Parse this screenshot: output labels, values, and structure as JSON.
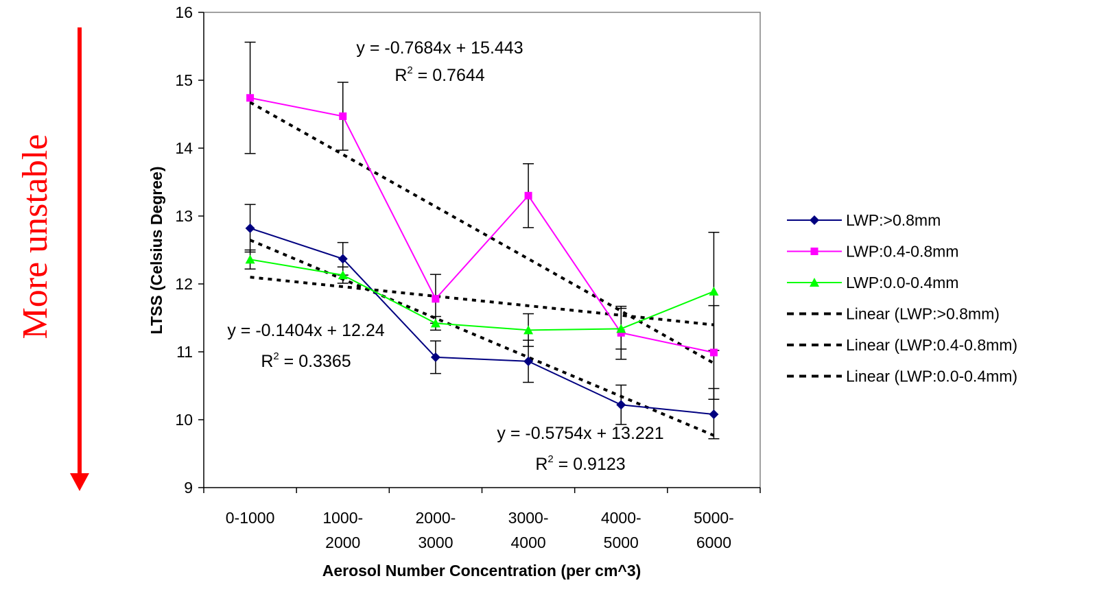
{
  "side_annotation": {
    "text": "More unstable",
    "color": "#ff0000"
  },
  "chart_data": {
    "type": "line",
    "title": "",
    "xlabel": "Aerosol Number Concentration (per cm^3)",
    "ylabel": "LTSS (Celsius Degree)",
    "categories": [
      "0-1000",
      "1000-2000",
      "2000-3000",
      "3000-4000",
      "4000-5000",
      "5000-6000"
    ],
    "category_lines": [
      [
        "0-1000"
      ],
      [
        "1000-",
        "2000"
      ],
      [
        "2000-",
        "3000"
      ],
      [
        "3000-",
        "4000"
      ],
      [
        "4000-",
        "5000"
      ],
      [
        "5000-",
        "6000"
      ]
    ],
    "ylim": [
      9,
      16
    ],
    "yticks": [
      "9",
      "10",
      "11",
      "12",
      "13",
      "14",
      "15",
      "16"
    ],
    "grid": false,
    "legend_position": "right",
    "series": [
      {
        "name": "LWP:>0.8mm",
        "color": "#000080",
        "marker": "diamond",
        "values": [
          12.82,
          12.37,
          10.92,
          10.86,
          10.22,
          10.08
        ],
        "err_high": [
          13.17,
          12.61,
          11.16,
          11.17,
          10.51,
          10.46
        ],
        "err_low": [
          12.47,
          12.13,
          10.68,
          10.55,
          9.93,
          9.72
        ]
      },
      {
        "name": "LWP:0.4-0.8mm",
        "color": "#ff00ff",
        "marker": "square",
        "values": [
          14.74,
          14.47,
          11.78,
          13.3,
          11.28,
          10.99
        ],
        "err_high": [
          15.56,
          14.97,
          12.14,
          13.77,
          11.67,
          11.68
        ],
        "err_low": [
          13.92,
          13.97,
          11.42,
          12.83,
          10.89,
          10.3
        ]
      },
      {
        "name": "LWP:0.0-0.4mm",
        "color": "#00ff00",
        "marker": "triangle",
        "values": [
          12.36,
          12.13,
          11.42,
          11.32,
          11.34,
          11.89
        ],
        "err_high": [
          12.5,
          12.25,
          11.52,
          11.56,
          11.64,
          12.76
        ],
        "err_low": [
          12.22,
          12.01,
          11.32,
          11.08,
          11.04,
          11.02
        ]
      }
    ],
    "trendlines": [
      {
        "name": "Linear (LWP:>0.8mm)",
        "slope": -0.5754,
        "intercept": 13.221,
        "color": "#000000",
        "style": "dotted"
      },
      {
        "name": "Linear (LWP:0.4-0.8mm)",
        "slope": -0.7684,
        "intercept": 15.443,
        "color": "#000000",
        "style": "dotted"
      },
      {
        "name": "Linear (LWP:0.0-0.4mm)",
        "slope": -0.1404,
        "intercept": 12.24,
        "color": "#000000",
        "style": "dotted"
      }
    ],
    "annotations": [
      {
        "equation": "y = -0.7684x + 15.443",
        "r2_label": "R",
        "r2_sup": "2",
        "r2_value": " = 0.7644"
      },
      {
        "equation": "y = -0.1404x + 12.24",
        "r2_label": "R",
        "r2_sup": "2",
        "r2_value": " = 0.3365"
      },
      {
        "equation": "y = -0.5754x + 13.221",
        "r2_label": "R",
        "r2_sup": "2",
        "r2_value": " = 0.9123"
      }
    ]
  }
}
